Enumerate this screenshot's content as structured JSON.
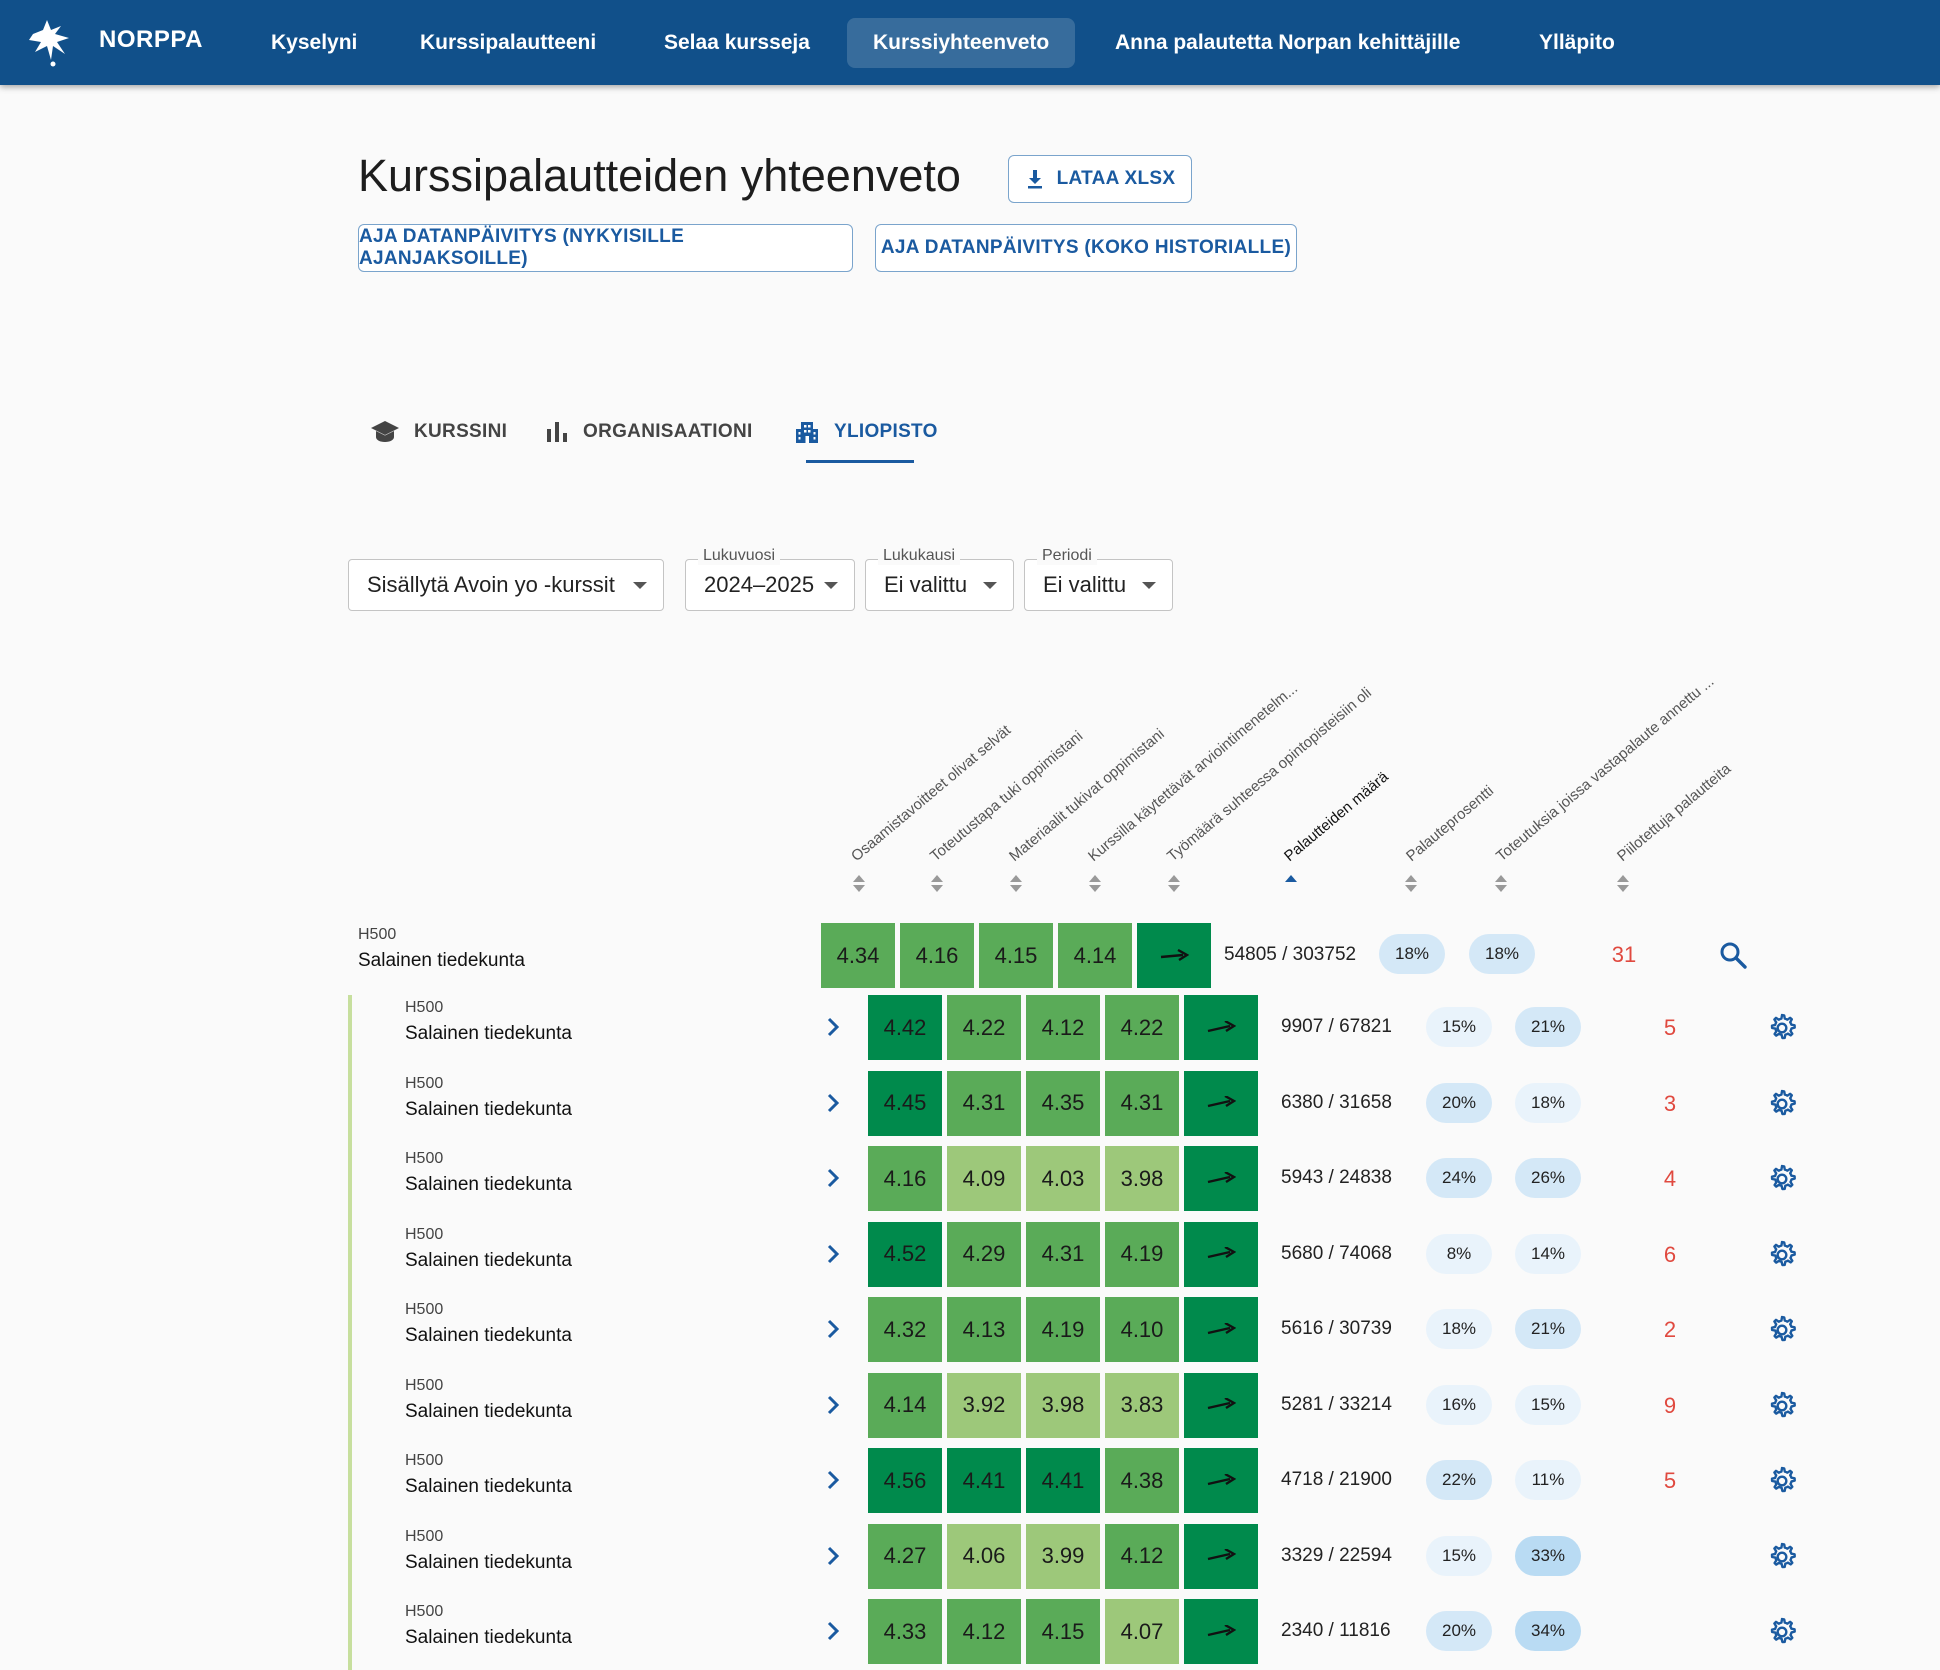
{
  "nav": {
    "brand": "NORPPA",
    "items": [
      {
        "label": "Kyselyni",
        "active": false
      },
      {
        "label": "Kurssipalautteeni",
        "active": false
      },
      {
        "label": "Selaa kursseja",
        "active": false
      },
      {
        "label": "Kurssiyhteenveto",
        "active": true
      },
      {
        "label": "Anna palautetta Norpan kehittäjille",
        "active": false
      },
      {
        "label": "Ylläpito",
        "active": false
      }
    ]
  },
  "header": {
    "title": "Kurssipalautteiden yhteenveto",
    "download_label": "LATAA XLSX",
    "update_current_label": "AJA DATANPÄIVITYS (NYKYISILLE AJANJAKSOILLE)",
    "update_all_label": "AJA DATANPÄIVITYS (KOKO HISTORIALLE)"
  },
  "tabs": [
    {
      "label": "KURSSINI",
      "icon": "school-icon",
      "active": false
    },
    {
      "label": "ORGANISAATIONI",
      "icon": "bar-chart-icon",
      "active": false
    },
    {
      "label": "YLIOPISTO",
      "icon": "building-icon",
      "active": true
    }
  ],
  "filters": {
    "open_uni": {
      "value": "Sisällytä Avoin yo -kurssit"
    },
    "year": {
      "label": "Lukuvuosi",
      "value": "2024–2025"
    },
    "semester": {
      "label": "Lukukausi",
      "value": "Ei valittu"
    },
    "period": {
      "label": "Periodi",
      "value": "Ei valittu"
    }
  },
  "columns": [
    "Osaamistavoitteet olivat selvät",
    "Toteutustapa tuki oppimistani",
    "Materiaalit tukivat oppimistani",
    "Kurssilla käytettävät arviointimenetelm...",
    "Työmäärä suhteessa opintopisteisiin oli",
    "Palautteiden määrä",
    "Palauteprosentti",
    "Toteutuksia joissa vastapalaute annettu ...",
    "Piilotettuja palautteita"
  ],
  "sorted_column": "Palautteiden määrä",
  "colors": {
    "nav": "#11508a",
    "accent": "#1a5aa0",
    "score_high": "#008a4c",
    "score_mid": "#5aab58",
    "score_low": "#9dc87a",
    "hidden_count": "#e0493f"
  },
  "summary_row": {
    "code": "H500",
    "name": "Salainen tiedekunta",
    "scores": [
      4.34,
      4.16,
      4.15,
      4.14
    ],
    "levels": [
      2,
      2,
      2,
      2
    ],
    "feedback_count": "54805 / 303752",
    "feedback_percent": "18%",
    "response_percent": "18%",
    "hidden": "31"
  },
  "rows": [
    {
      "code": "H500",
      "name": "Salainen tiedekunta",
      "scores": [
        "4.42",
        "4.22",
        "4.12",
        "4.22"
      ],
      "levels": [
        1,
        2,
        2,
        2
      ],
      "feedback_count": "9907 / 67821",
      "feedback_percent": "15%",
      "response_percent": "21%",
      "hidden": "5"
    },
    {
      "code": "H500",
      "name": "Salainen tiedekunta",
      "scores": [
        "4.45",
        "4.31",
        "4.35",
        "4.31"
      ],
      "levels": [
        1,
        2,
        2,
        2
      ],
      "feedback_count": "6380 / 31658",
      "feedback_percent": "20%",
      "response_percent": "18%",
      "hidden": "3"
    },
    {
      "code": "H500",
      "name": "Salainen tiedekunta",
      "scores": [
        "4.16",
        "4.09",
        "4.03",
        "3.98"
      ],
      "levels": [
        2,
        3,
        3,
        3
      ],
      "feedback_count": "5943 / 24838",
      "feedback_percent": "24%",
      "response_percent": "26%",
      "hidden": "4"
    },
    {
      "code": "H500",
      "name": "Salainen tiedekunta",
      "scores": [
        "4.52",
        "4.29",
        "4.31",
        "4.19"
      ],
      "levels": [
        1,
        2,
        2,
        2
      ],
      "feedback_count": "5680 / 74068",
      "feedback_percent": "8%",
      "response_percent": "14%",
      "hidden": "6"
    },
    {
      "code": "H500",
      "name": "Salainen tiedekunta",
      "scores": [
        "4.32",
        "4.13",
        "4.19",
        "4.10"
      ],
      "levels": [
        2,
        2,
        2,
        2
      ],
      "feedback_count": "5616 / 30739",
      "feedback_percent": "18%",
      "response_percent": "21%",
      "hidden": "2"
    },
    {
      "code": "H500",
      "name": "Salainen tiedekunta",
      "scores": [
        "4.14",
        "3.92",
        "3.98",
        "3.83"
      ],
      "levels": [
        2,
        3,
        3,
        3
      ],
      "feedback_count": "5281 / 33214",
      "feedback_percent": "16%",
      "response_percent": "15%",
      "hidden": "9"
    },
    {
      "code": "H500",
      "name": "Salainen tiedekunta",
      "scores": [
        "4.56",
        "4.41",
        "4.41",
        "4.38"
      ],
      "levels": [
        1,
        1,
        1,
        2
      ],
      "feedback_count": "4718 / 21900",
      "feedback_percent": "22%",
      "response_percent": "11%",
      "hidden": "5"
    },
    {
      "code": "H500",
      "name": "Salainen tiedekunta",
      "scores": [
        "4.27",
        "4.06",
        "3.99",
        "4.12"
      ],
      "levels": [
        2,
        3,
        3,
        2
      ],
      "feedback_count": "3329 / 22594",
      "feedback_percent": "15%",
      "response_percent": "33%",
      "hidden": ""
    },
    {
      "code": "H500",
      "name": "Salainen tiedekunta",
      "scores": [
        "4.33",
        "4.12",
        "4.15",
        "4.07"
      ],
      "levels": [
        2,
        2,
        2,
        3
      ],
      "feedback_count": "2340 / 11816",
      "feedback_percent": "20%",
      "response_percent": "34%",
      "hidden": ""
    }
  ]
}
